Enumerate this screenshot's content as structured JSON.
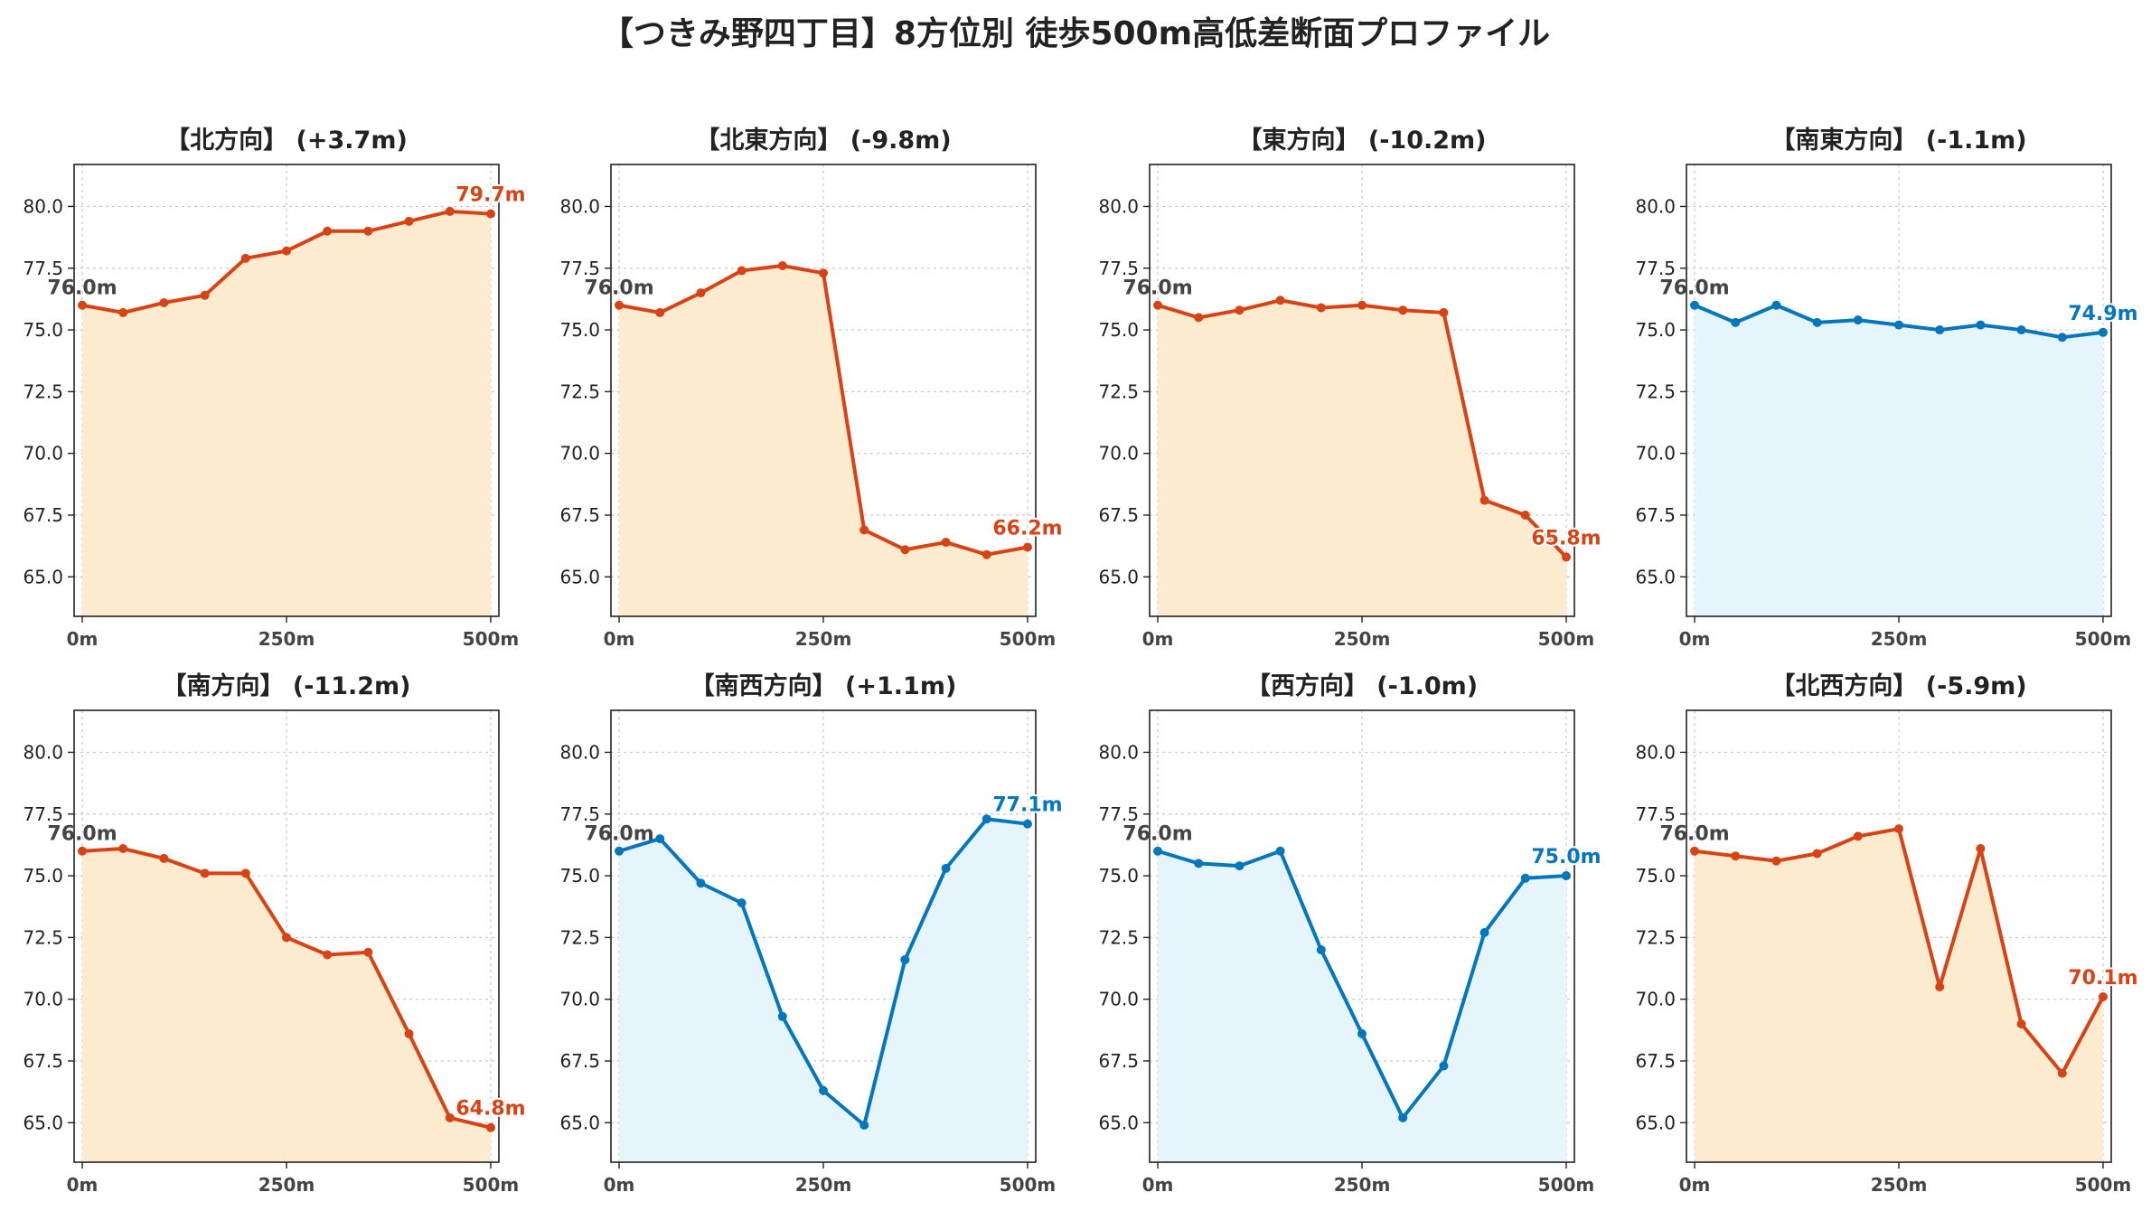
{
  "title": "【つきみ野四丁目】8方位別 徒歩500m高低差断面プロファイル",
  "colors": {
    "down": "#d84315",
    "up": "#0277bd",
    "down_fill": "#fdebd0",
    "up_fill": "#e6f4fb",
    "start_label": "#444444"
  },
  "chart_data": [
    {
      "type": "area",
      "title": "【北方向】 (+3.7m)",
      "trend": "down",
      "x": [
        0,
        50,
        100,
        150,
        200,
        250,
        300,
        350,
        400,
        450,
        500
      ],
      "y": [
        76.0,
        75.7,
        76.1,
        76.4,
        77.9,
        78.2,
        79.0,
        79.0,
        79.4,
        79.8,
        79.7
      ],
      "start_label": "76.0m",
      "end_label": "79.7m",
      "xticks": [
        "0m",
        "250m",
        "500m"
      ],
      "yticks": [
        "65.0",
        "67.5",
        "70.0",
        "72.5",
        "75.0",
        "77.5",
        "80.0"
      ],
      "ylim": [
        63.4,
        81.7
      ],
      "xlim": [
        -10,
        510
      ],
      "grid": true
    },
    {
      "type": "area",
      "title": "【北東方向】 (-9.8m)",
      "trend": "down",
      "x": [
        0,
        50,
        100,
        150,
        200,
        250,
        300,
        350,
        400,
        450,
        500
      ],
      "y": [
        76.0,
        75.7,
        76.5,
        77.4,
        77.6,
        77.3,
        66.9,
        66.1,
        66.4,
        65.9,
        66.2
      ],
      "start_label": "76.0m",
      "end_label": "66.2m",
      "xticks": [
        "0m",
        "250m",
        "500m"
      ],
      "yticks": [
        "65.0",
        "67.5",
        "70.0",
        "72.5",
        "75.0",
        "77.5",
        "80.0"
      ],
      "ylim": [
        63.4,
        81.7
      ],
      "xlim": [
        -10,
        510
      ],
      "grid": true
    },
    {
      "type": "area",
      "title": "【東方向】 (-10.2m)",
      "trend": "down",
      "x": [
        0,
        50,
        100,
        150,
        200,
        250,
        300,
        350,
        400,
        450,
        500
      ],
      "y": [
        76.0,
        75.5,
        75.8,
        76.2,
        75.9,
        76.0,
        75.8,
        75.7,
        68.1,
        67.5,
        65.8
      ],
      "start_label": "76.0m",
      "end_label": "65.8m",
      "xticks": [
        "0m",
        "250m",
        "500m"
      ],
      "yticks": [
        "65.0",
        "67.5",
        "70.0",
        "72.5",
        "75.0",
        "77.5",
        "80.0"
      ],
      "ylim": [
        63.4,
        81.7
      ],
      "xlim": [
        -10,
        510
      ],
      "grid": true
    },
    {
      "type": "area",
      "title": "【南東方向】 (-1.1m)",
      "trend": "up",
      "x": [
        0,
        50,
        100,
        150,
        200,
        250,
        300,
        350,
        400,
        450,
        500
      ],
      "y": [
        76.0,
        75.3,
        76.0,
        75.3,
        75.4,
        75.2,
        75.0,
        75.2,
        75.0,
        74.7,
        74.9
      ],
      "start_label": "76.0m",
      "end_label": "74.9m",
      "xticks": [
        "0m",
        "250m",
        "500m"
      ],
      "yticks": [
        "65.0",
        "67.5",
        "70.0",
        "72.5",
        "75.0",
        "77.5",
        "80.0"
      ],
      "ylim": [
        63.4,
        81.7
      ],
      "xlim": [
        -10,
        510
      ],
      "grid": true
    },
    {
      "type": "area",
      "title": "【南方向】 (-11.2m)",
      "trend": "down",
      "x": [
        0,
        50,
        100,
        150,
        200,
        250,
        300,
        350,
        400,
        450,
        500
      ],
      "y": [
        76.0,
        76.1,
        75.7,
        75.1,
        75.1,
        72.5,
        71.8,
        71.9,
        68.6,
        65.2,
        64.8
      ],
      "start_label": "76.0m",
      "end_label": "64.8m",
      "xticks": [
        "0m",
        "250m",
        "500m"
      ],
      "yticks": [
        "65.0",
        "67.5",
        "70.0",
        "72.5",
        "75.0",
        "77.5",
        "80.0"
      ],
      "ylim": [
        63.4,
        81.7
      ],
      "xlim": [
        -10,
        510
      ],
      "grid": true
    },
    {
      "type": "area",
      "title": "【南西方向】 (+1.1m)",
      "trend": "up",
      "x": [
        0,
        50,
        100,
        150,
        200,
        250,
        300,
        350,
        400,
        450,
        500
      ],
      "y": [
        76.0,
        76.5,
        74.7,
        73.9,
        69.3,
        66.3,
        64.9,
        71.6,
        75.3,
        77.3,
        77.1
      ],
      "start_label": "76.0m",
      "end_label": "77.1m",
      "xticks": [
        "0m",
        "250m",
        "500m"
      ],
      "yticks": [
        "65.0",
        "67.5",
        "70.0",
        "72.5",
        "75.0",
        "77.5",
        "80.0"
      ],
      "ylim": [
        63.4,
        81.7
      ],
      "xlim": [
        -10,
        510
      ],
      "grid": true
    },
    {
      "type": "area",
      "title": "【西方向】 (-1.0m)",
      "trend": "up",
      "x": [
        0,
        50,
        100,
        150,
        200,
        250,
        300,
        350,
        400,
        450,
        500
      ],
      "y": [
        76.0,
        75.5,
        75.4,
        76.0,
        72.0,
        68.6,
        65.2,
        67.3,
        72.7,
        74.9,
        75.0
      ],
      "start_label": "76.0m",
      "end_label": "75.0m",
      "xticks": [
        "0m",
        "250m",
        "500m"
      ],
      "yticks": [
        "65.0",
        "67.5",
        "70.0",
        "72.5",
        "75.0",
        "77.5",
        "80.0"
      ],
      "ylim": [
        63.4,
        81.7
      ],
      "xlim": [
        -10,
        510
      ],
      "grid": true
    },
    {
      "type": "area",
      "title": "【北西方向】 (-5.9m)",
      "trend": "down",
      "x": [
        0,
        50,
        100,
        150,
        200,
        250,
        300,
        350,
        400,
        450,
        500
      ],
      "y": [
        76.0,
        75.8,
        75.6,
        75.9,
        76.6,
        76.9,
        70.5,
        76.1,
        69.0,
        67.0,
        70.1
      ],
      "start_label": "76.0m",
      "end_label": "70.1m",
      "xticks": [
        "0m",
        "250m",
        "500m"
      ],
      "yticks": [
        "65.0",
        "67.5",
        "70.0",
        "72.5",
        "75.0",
        "77.5",
        "80.0"
      ],
      "ylim": [
        63.4,
        81.7
      ],
      "xlim": [
        -10,
        510
      ],
      "grid": true
    }
  ]
}
